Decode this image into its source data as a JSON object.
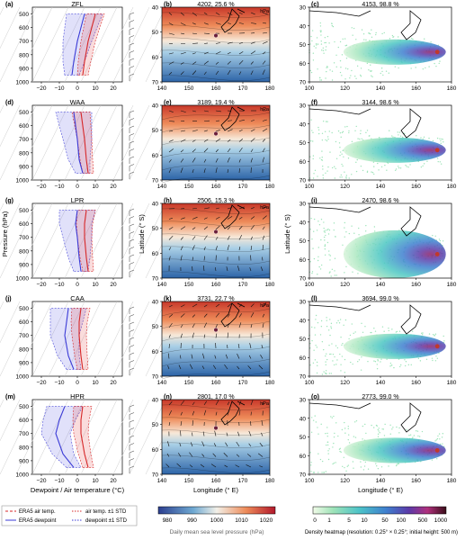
{
  "figure": {
    "rows": [
      {
        "name": "ZFL",
        "sound_letter": "(a)",
        "map_letter": "(b)",
        "map_title": "4202, 25.6 %",
        "den_letter": "(c)",
        "den_title": "4153, 98.8 %",
        "hpa": "hPa"
      },
      {
        "name": "WAA",
        "sound_letter": "(d)",
        "map_letter": "(e)",
        "map_title": "3189, 19.4 %",
        "den_letter": "(f)",
        "den_title": "3144, 98.6 %",
        "hpa": "hPa"
      },
      {
        "name": "LPR",
        "sound_letter": "(g)",
        "map_letter": "(h)",
        "map_title": "2506, 15.3 %",
        "den_letter": "(i)",
        "den_title": "2470, 98.6 %",
        "hpa": "hPa"
      },
      {
        "name": "CAA",
        "sound_letter": "(j)",
        "map_letter": "(k)",
        "map_title": "3731, 22.7 %",
        "den_letter": "(l)",
        "den_title": "3694, 99.0 %",
        "hpa": "hPa"
      },
      {
        "name": "HPR",
        "sound_letter": "(m)",
        "map_letter": "(n)",
        "map_title": "2801, 17.0 %",
        "den_letter": "(o)",
        "den_title": "2773, 99.0 %",
        "hpa": "hPa"
      }
    ],
    "sounding": {
      "ylabel": "Pressure (hPa)",
      "xlabel": "Dewpoint / Air temperature (°C)",
      "yticks": [
        "500",
        "600",
        "700",
        "800",
        "900",
        "1000"
      ],
      "xticks": [
        "−20",
        "−10",
        "0",
        "10",
        "20"
      ]
    },
    "map": {
      "ylabel": "Latitude (° S)",
      "xlabel": "Longitude (° E)",
      "yticks": [
        "40",
        "50",
        "60",
        "70"
      ],
      "xticks": [
        "140",
        "150",
        "160",
        "170",
        "180"
      ]
    },
    "density": {
      "ylabel": "Latitude (° S)",
      "xlabel": "Longitude (° E)",
      "yticks": [
        "30",
        "40",
        "50",
        "60",
        "70"
      ],
      "xticks": [
        "100",
        "120",
        "140",
        "160",
        "180"
      ]
    },
    "legend": {
      "items": [
        "ERA5 air temp.",
        "air temp. ±1 STD",
        "ERA5 dewpoint",
        "dewpoint ±1 STD"
      ],
      "colors": {
        "air": "#d62728",
        "dew": "#3b3bd6"
      }
    },
    "colorbar_slp": {
      "ticks": [
        "980",
        "990",
        "1000",
        "1010",
        "1020"
      ],
      "label": "Daily mean sea level pressure (hPa)"
    },
    "colorbar_density": {
      "ticks": [
        "0",
        "1",
        "5",
        "10",
        "50",
        "100",
        "500",
        "1000"
      ],
      "label": "Density heatmap (resolution: 0.25° × 0.25°; initial height: 500 m)"
    }
  },
  "chart_data": [
    {
      "type": "line",
      "title": "ZFL",
      "xlabel": "Dewpoint / Air temperature (°C)",
      "ylabel": "Pressure (hPa)",
      "xlim": [
        -25,
        25
      ],
      "ylim": [
        1000,
        450
      ],
      "series": [
        {
          "name": "ERA5 air temp.",
          "x": [
            3,
            4,
            6,
            8,
            10
          ],
          "y": [
            950,
            850,
            700,
            600,
            500
          ]
        },
        {
          "name": "ERA5 dewpoint",
          "x": [
            -3,
            -2,
            0,
            2,
            4
          ],
          "y": [
            950,
            850,
            700,
            600,
            500
          ]
        }
      ]
    },
    {
      "type": "line",
      "title": "WAA",
      "xlabel": "Dewpoint / Air temperature (°C)",
      "ylabel": "Pressure (hPa)",
      "xlim": [
        -25,
        25
      ],
      "ylim": [
        1000,
        450
      ],
      "series": [
        {
          "name": "ERA5 air temp.",
          "x": [
            6,
            5,
            4,
            3,
            2
          ],
          "y": [
            950,
            850,
            700,
            600,
            500
          ]
        },
        {
          "name": "ERA5 dewpoint",
          "x": [
            3,
            1,
            0,
            -1,
            -2
          ],
          "y": [
            950,
            850,
            700,
            600,
            500
          ]
        }
      ]
    },
    {
      "type": "line",
      "title": "LPR",
      "xlabel": "Dewpoint / Air temperature (°C)",
      "ylabel": "Pressure (hPa)",
      "xlim": [
        -25,
        25
      ],
      "ylim": [
        1000,
        450
      ],
      "series": [
        {
          "name": "ERA5 air temp.",
          "x": [
            6,
            5,
            4,
            4,
            5
          ],
          "y": [
            950,
            850,
            700,
            600,
            500
          ]
        },
        {
          "name": "ERA5 dewpoint",
          "x": [
            2,
            1,
            0,
            -1,
            0
          ],
          "y": [
            950,
            850,
            700,
            600,
            500
          ]
        }
      ]
    },
    {
      "type": "line",
      "title": "CAA",
      "xlabel": "Dewpoint / Air temperature (°C)",
      "ylabel": "Pressure (hPa)",
      "xlim": [
        -25,
        25
      ],
      "ylim": [
        1000,
        450
      ],
      "series": [
        {
          "name": "ERA5 air temp.",
          "x": [
            3,
            2,
            1,
            1,
            2
          ],
          "y": [
            950,
            850,
            700,
            600,
            500
          ]
        },
        {
          "name": "ERA5 dewpoint",
          "x": [
            -2,
            -5,
            -7,
            -6,
            -5
          ],
          "y": [
            950,
            850,
            700,
            600,
            500
          ]
        }
      ]
    },
    {
      "type": "line",
      "title": "HPR",
      "xlabel": "Dewpoint / Air temperature (°C)",
      "ylabel": "Pressure (hPa)",
      "xlim": [
        -25,
        25
      ],
      "ylim": [
        1000,
        450
      ],
      "series": [
        {
          "name": "ERA5 air temp.",
          "x": [
            6,
            4,
            2,
            2,
            3
          ],
          "y": [
            950,
            850,
            700,
            600,
            500
          ]
        },
        {
          "name": "ERA5 dewpoint",
          "x": [
            -2,
            -8,
            -12,
            -10,
            -7
          ],
          "y": [
            950,
            850,
            700,
            600,
            500
          ]
        }
      ]
    }
  ]
}
